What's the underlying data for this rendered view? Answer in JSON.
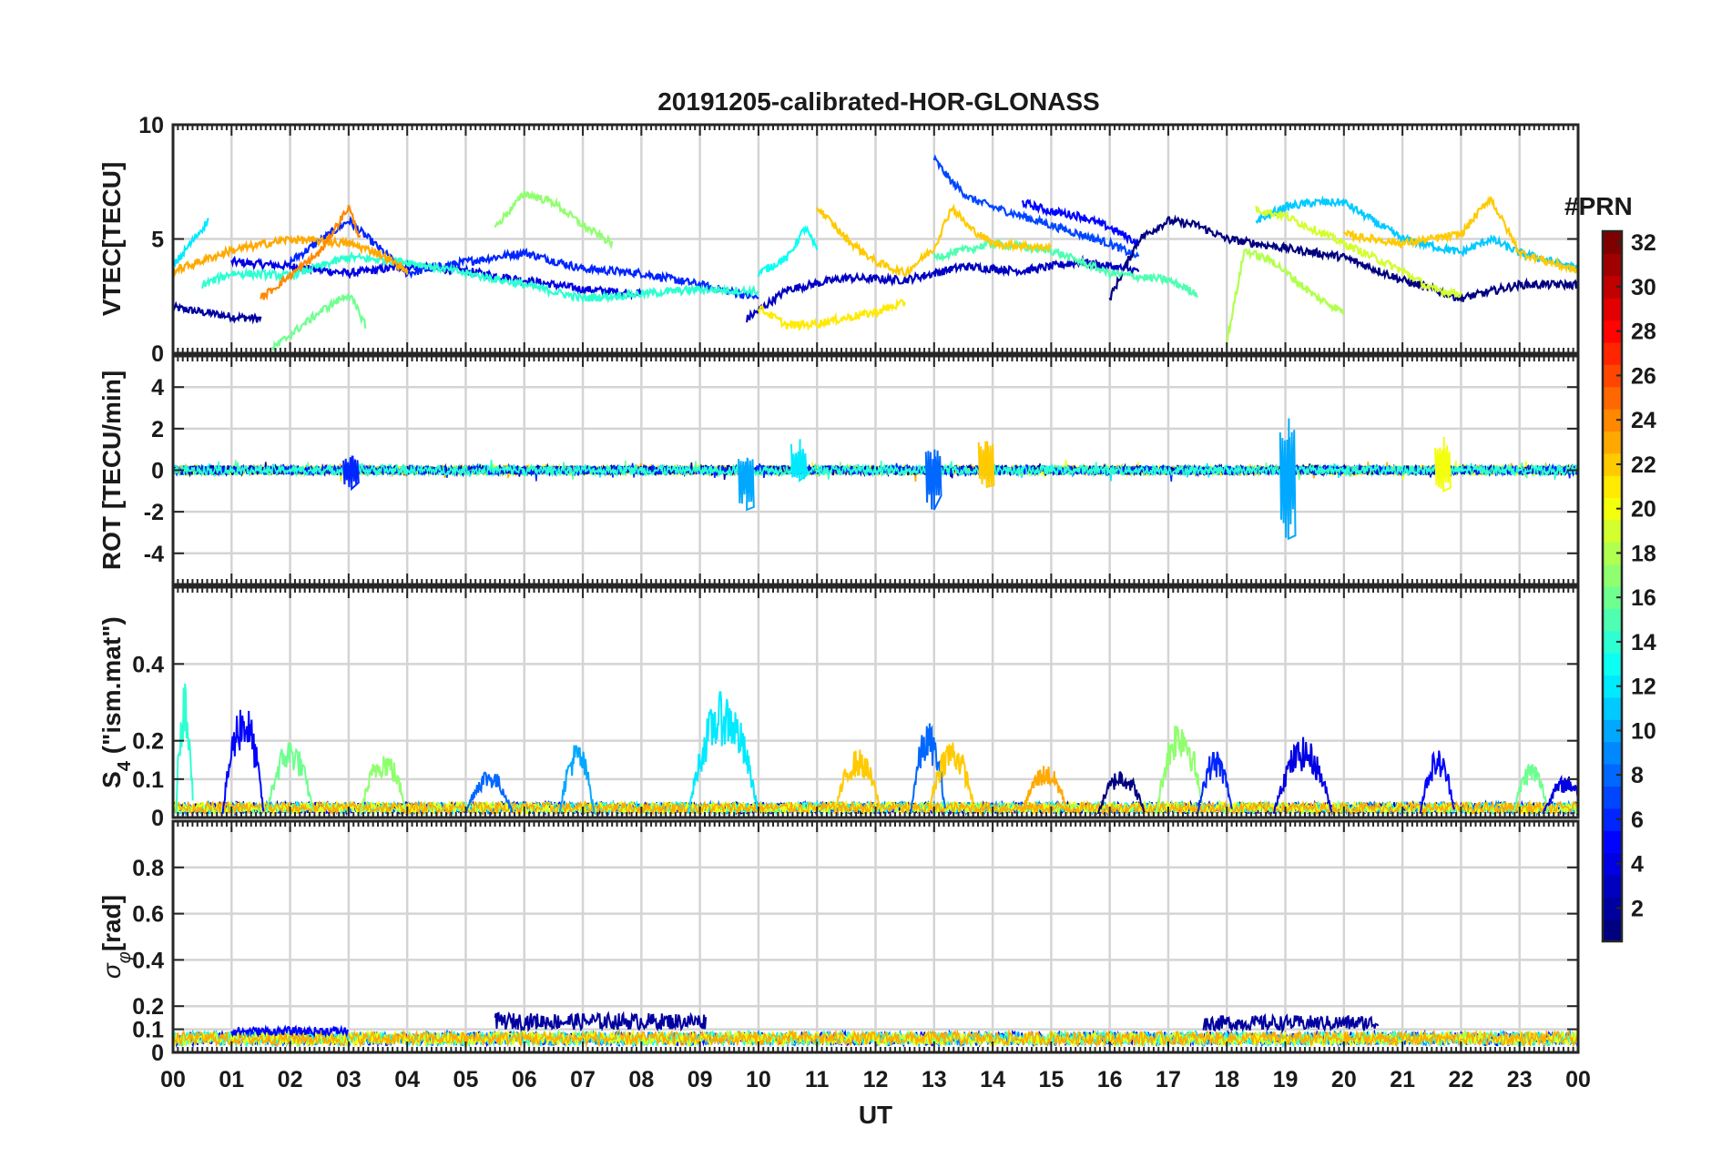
{
  "figure_title": "20191205-calibrated-HOR-GLONASS",
  "chart_data": [
    {
      "type": "line",
      "panel": "vtec",
      "title": "20191205-calibrated-HOR-GLONASS",
      "ylabel": "VTEC[TECU]",
      "xlabel": "",
      "xlim": [
        0,
        24
      ],
      "ylim": [
        0,
        10
      ],
      "yticks": [
        0,
        5,
        10
      ],
      "grid": true,
      "series": [
        {
          "prn": 2,
          "x": [
            0.0,
            0.5,
            1.0,
            1.5
          ],
          "y": [
            2.0,
            1.8,
            1.6,
            1.5
          ]
        },
        {
          "prn": 4,
          "x": [
            1.0,
            2.0,
            3.0,
            4.0,
            5.0,
            6.0,
            7.0,
            8.0
          ],
          "y": [
            4.0,
            3.8,
            3.5,
            3.8,
            3.6,
            3.2,
            2.8,
            2.6
          ]
        },
        {
          "prn": 6,
          "x": [
            2.0,
            3.0,
            4.0,
            5.0,
            6.0,
            7.0,
            8.0,
            9.0,
            10.0
          ],
          "y": [
            4.0,
            5.8,
            3.5,
            4.0,
            4.4,
            3.7,
            3.5,
            3.0,
            2.4
          ]
        },
        {
          "prn": 3,
          "x": [
            9.8,
            10.5,
            11.5,
            12.5,
            13.5,
            14.5,
            15.5,
            16.5
          ],
          "y": [
            1.5,
            2.8,
            3.3,
            3.2,
            3.8,
            3.6,
            4.0,
            3.6
          ]
        },
        {
          "prn": 7,
          "x": [
            13.0,
            13.3,
            13.6,
            14.0,
            15.0,
            16.0,
            16.5
          ],
          "y": [
            8.5,
            7.5,
            6.8,
            6.4,
            5.6,
            4.8,
            4.2
          ]
        },
        {
          "prn": 5,
          "x": [
            14.5,
            15.0,
            15.5,
            16.0,
            16.5
          ],
          "y": [
            6.6,
            6.2,
            6.0,
            5.5,
            4.8
          ]
        },
        {
          "prn": 1,
          "x": [
            16.0,
            16.5,
            17.0,
            17.5,
            18.0,
            19.0,
            20.0,
            21.0,
            21.5,
            22.0,
            23.0,
            24.0
          ],
          "y": [
            2.4,
            5.0,
            5.8,
            5.6,
            5.0,
            4.6,
            4.2,
            3.2,
            2.8,
            2.4,
            3.0,
            3.0
          ]
        },
        {
          "prn": 12,
          "x": [
            0.0,
            0.3,
            0.6
          ],
          "y": [
            3.8,
            4.8,
            5.8
          ]
        },
        {
          "prn": 13,
          "x": [
            10.0,
            10.5,
            10.8,
            11.0
          ],
          "y": [
            3.5,
            4.2,
            5.5,
            4.5
          ]
        },
        {
          "prn": 11,
          "x": [
            18.5,
            19.0,
            19.5,
            20.0,
            20.5,
            21.0,
            22.0,
            22.5,
            23.0,
            24.0
          ],
          "y": [
            5.8,
            6.4,
            6.6,
            6.6,
            5.8,
            5.0,
            4.4,
            5.0,
            4.4,
            3.7
          ]
        },
        {
          "prn": 14,
          "x": [
            0.5,
            1.0,
            2.0,
            3.0,
            4.0,
            5.0,
            6.0,
            7.0,
            8.0,
            9.0,
            10.0
          ],
          "y": [
            3.0,
            3.5,
            3.4,
            4.2,
            4.0,
            3.5,
            3.0,
            2.4,
            2.6,
            2.8,
            2.7
          ]
        },
        {
          "prn": 16,
          "x": [
            1.7,
            2.5,
            3.0,
            3.3
          ],
          "y": [
            0.2,
            1.8,
            2.6,
            1.2
          ]
        },
        {
          "prn": 17,
          "x": [
            5.5,
            6.0,
            6.5,
            7.0,
            7.5
          ],
          "y": [
            5.5,
            7.0,
            6.6,
            5.6,
            4.8
          ]
        },
        {
          "prn": 15,
          "x": [
            13.0,
            14.0,
            15.0,
            16.0,
            17.0,
            17.5
          ],
          "y": [
            4.2,
            4.8,
            4.5,
            3.5,
            3.2,
            2.6
          ]
        },
        {
          "prn": 18,
          "x": [
            18.0,
            18.3,
            18.8,
            19.5,
            20.0
          ],
          "y": [
            0.5,
            4.5,
            4.0,
            2.5,
            1.8
          ]
        },
        {
          "prn": 19,
          "x": [
            18.5,
            19.0,
            20.0,
            21.0,
            21.5,
            22.0
          ],
          "y": [
            6.3,
            6.0,
            4.8,
            3.6,
            2.8,
            2.6
          ]
        },
        {
          "prn": 21,
          "x": [
            10.0,
            10.5,
            11.0,
            12.0,
            12.5
          ],
          "y": [
            2.0,
            1.2,
            1.3,
            1.8,
            2.2
          ]
        },
        {
          "prn": 22,
          "x": [
            11.0,
            11.5,
            12.0,
            12.5,
            13.0,
            13.3,
            13.6,
            14.0,
            15.0
          ],
          "y": [
            6.4,
            5.0,
            4.0,
            3.5,
            4.6,
            6.4,
            5.5,
            4.8,
            4.6
          ]
        },
        {
          "prn": 23,
          "x": [
            0.0,
            1.0,
            2.0,
            3.0,
            3.5,
            4.0
          ],
          "y": [
            3.6,
            4.5,
            5.0,
            4.8,
            4.4,
            3.6
          ]
        },
        {
          "prn": 24,
          "x": [
            1.5,
            2.0,
            2.5,
            3.0,
            3.2
          ],
          "y": [
            2.4,
            3.4,
            4.4,
            6.4,
            5.0
          ]
        },
        {
          "prn": 22,
          "x": [
            20.0,
            21.0,
            22.0,
            22.5,
            23.0,
            24.0
          ],
          "y": [
            5.2,
            4.8,
            5.2,
            6.8,
            4.4,
            3.6
          ]
        }
      ]
    },
    {
      "type": "line",
      "panel": "rot",
      "ylabel": "ROT [TECU/min]",
      "xlabel": "",
      "xlim": [
        0,
        24
      ],
      "ylim": [
        -5.5,
        5.5
      ],
      "yticks": [
        -4,
        -2,
        0,
        2,
        4
      ],
      "grid": true,
      "spikes": [
        {
          "x": 3.05,
          "ymin": -0.9,
          "ymax": 0.7,
          "prn": 6
        },
        {
          "x": 9.8,
          "ymin": -1.9,
          "ymax": 0.6,
          "prn": 10
        },
        {
          "x": 10.7,
          "ymin": -0.5,
          "ymax": 1.5,
          "prn": 12
        },
        {
          "x": 13.0,
          "ymin": -1.9,
          "ymax": 1.0,
          "prn": 8
        },
        {
          "x": 13.9,
          "ymin": -0.8,
          "ymax": 1.4,
          "prn": 22
        },
        {
          "x": 19.05,
          "ymin": -3.3,
          "ymax": 2.5,
          "prn": 10
        },
        {
          "x": 21.7,
          "ymin": -1.0,
          "ymax": 1.6,
          "prn": 20
        }
      ]
    },
    {
      "type": "line",
      "panel": "s4",
      "ylabel": "S4 (\"ism.mat\")",
      "ylabel_main": "S",
      "ylabel_sub": "4",
      "ylabel_rest": " (\"ism.mat\")",
      "xlabel": "",
      "xlim": [
        0,
        24
      ],
      "ylim": [
        0,
        0.6
      ],
      "yticks": [
        0,
        0.1,
        0.2,
        0.4
      ],
      "grid": true,
      "events": [
        {
          "center": 0.2,
          "width": 0.15,
          "peak": 0.36,
          "prn": 14
        },
        {
          "center": 1.2,
          "width": 0.35,
          "peak": 0.3,
          "prn": 5
        },
        {
          "center": 2.0,
          "width": 0.4,
          "peak": 0.2,
          "prn": 16
        },
        {
          "center": 3.6,
          "width": 0.4,
          "peak": 0.17,
          "prn": 17
        },
        {
          "center": 5.4,
          "width": 0.4,
          "peak": 0.12,
          "prn": 8
        },
        {
          "center": 6.9,
          "width": 0.3,
          "peak": 0.19,
          "prn": 10
        },
        {
          "center": 9.4,
          "width": 0.6,
          "peak": 0.32,
          "prn": 12
        },
        {
          "center": 11.7,
          "width": 0.4,
          "peak": 0.17,
          "prn": 22
        },
        {
          "center": 12.9,
          "width": 0.3,
          "peak": 0.24,
          "prn": 8
        },
        {
          "center": 13.3,
          "width": 0.4,
          "peak": 0.2,
          "prn": 22
        },
        {
          "center": 14.9,
          "width": 0.4,
          "peak": 0.13,
          "prn": 23
        },
        {
          "center": 16.2,
          "width": 0.4,
          "peak": 0.12,
          "prn": 1
        },
        {
          "center": 17.2,
          "width": 0.4,
          "peak": 0.26,
          "prn": 17
        },
        {
          "center": 17.8,
          "width": 0.3,
          "peak": 0.17,
          "prn": 6
        },
        {
          "center": 19.3,
          "width": 0.5,
          "peak": 0.2,
          "prn": 4
        },
        {
          "center": 21.6,
          "width": 0.3,
          "peak": 0.17,
          "prn": 5
        },
        {
          "center": 23.2,
          "width": 0.3,
          "peak": 0.14,
          "prn": 16
        },
        {
          "center": 23.8,
          "width": 0.4,
          "peak": 0.1,
          "prn": 4
        }
      ]
    },
    {
      "type": "line",
      "panel": "sigma",
      "ylabel": "σφ[rad]",
      "ylabel_main": "σ",
      "ylabel_sub": "φ",
      "ylabel_rest": "[rad]",
      "xlabel": "UT",
      "xlim": [
        0,
        24
      ],
      "ylim": [
        0,
        1
      ],
      "yticks": [
        0,
        0.1,
        0.2,
        0.4,
        0.6,
        0.8
      ],
      "xticks": [
        0,
        1,
        2,
        3,
        4,
        5,
        6,
        7,
        8,
        9,
        10,
        11,
        12,
        13,
        14,
        15,
        16,
        17,
        18,
        19,
        20,
        21,
        22,
        23,
        24
      ],
      "xtick_labels": [
        "00",
        "01",
        "02",
        "03",
        "04",
        "05",
        "06",
        "07",
        "08",
        "09",
        "10",
        "11",
        "12",
        "13",
        "14",
        "15",
        "16",
        "17",
        "18",
        "19",
        "20",
        "21",
        "22",
        "23",
        "00"
      ],
      "grid": true,
      "bursts": [
        {
          "start": 5.5,
          "end": 9.1,
          "level": 0.16,
          "prn": 2
        },
        {
          "start": 17.6,
          "end": 20.6,
          "level": 0.15,
          "prn": 2
        },
        {
          "start": 1.0,
          "end": 3.0,
          "level": 0.1,
          "prn": 5
        }
      ]
    }
  ],
  "colorbar": {
    "label": "#PRN",
    "min": 1,
    "max": 32,
    "ticks": [
      2,
      4,
      6,
      8,
      10,
      12,
      14,
      16,
      18,
      20,
      22,
      24,
      26,
      28,
      30,
      32
    ],
    "colormap": "jet"
  }
}
